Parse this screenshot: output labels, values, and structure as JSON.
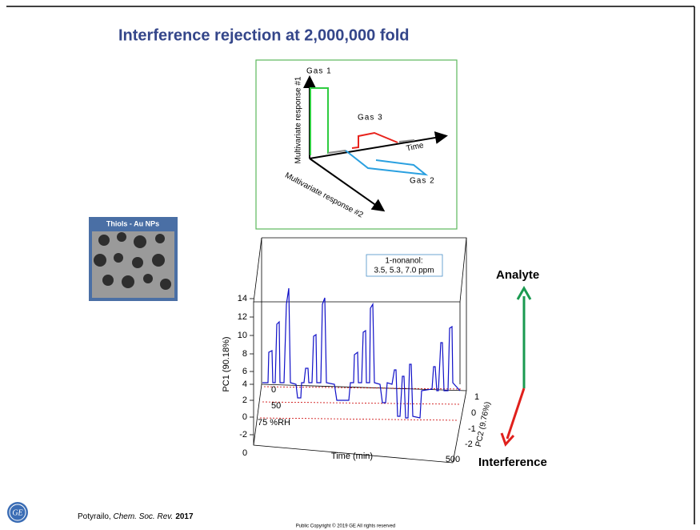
{
  "title": "Interference rejection at 2,000,000 fold",
  "diagram": {
    "gas1": "Gas 1",
    "gas3": "Gas 3",
    "gas2": "Gas 2",
    "time": "Time",
    "axis1": "Multivariate response #1",
    "axis2": "Multivariate response #2"
  },
  "thumbnail": {
    "label": "Thiols - Au NPs"
  },
  "plot": {
    "yticks": [
      "14",
      "12",
      "10",
      "8",
      "6",
      "4",
      "2",
      "0",
      "-2"
    ],
    "ylabel": "PC1 (90.18%)",
    "xticks": [
      "0",
      "500"
    ],
    "xlabel": "Time (min)",
    "zticks": [
      "1",
      "0",
      "-1",
      "-2"
    ],
    "zlabel": "PC2 (9.76%)",
    "legend": [
      "1-nonanol:",
      "3.5, 5.3, 7.0 ppm"
    ],
    "rh_labels": [
      "0",
      "50",
      "75 %RH"
    ]
  },
  "analyte": "Analyte",
  "interference": "Interference",
  "footer": {
    "author": "Potyrailo, ",
    "journal": "Chem. Soc. Rev.",
    "year": "2017",
    "copyright": "Public Copyright © 2019 GE All rights reserved",
    "logo": "GE"
  }
}
